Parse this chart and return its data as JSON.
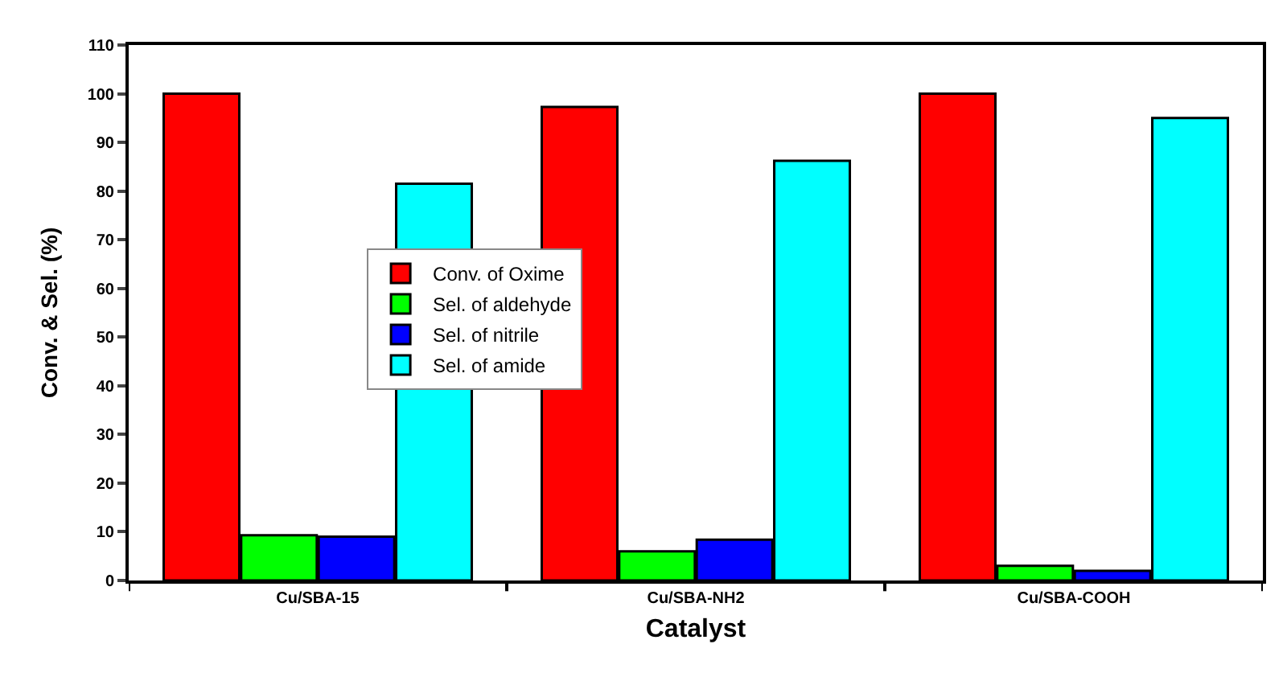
{
  "chart_data": {
    "type": "bar",
    "xlabel": "Catalyst",
    "ylabel": "Conv. & Sel. (%)",
    "categories": [
      "Cu/SBA-15",
      "Cu/SBA-NH2",
      "Cu/SBA-COOH"
    ],
    "series": [
      {
        "name": "Conv. of Oxime",
        "color": "#ff0000",
        "values": [
          100,
          97.3,
          100
        ]
      },
      {
        "name": "Sel. of aldehyde",
        "color": "#00ff00",
        "values": [
          9.3,
          6,
          3
        ]
      },
      {
        "name": "Sel. of nitrile",
        "color": "#0000ff",
        "values": [
          9,
          8.4,
          2
        ]
      },
      {
        "name": "Sel. of amide",
        "color": "#00ffff",
        "values": [
          81.5,
          86.2,
          95
        ]
      }
    ],
    "ylim": [
      0,
      110
    ],
    "yticks": [
      0,
      10,
      20,
      30,
      40,
      50,
      60,
      70,
      80,
      90,
      100,
      110
    ],
    "legend": "center"
  }
}
